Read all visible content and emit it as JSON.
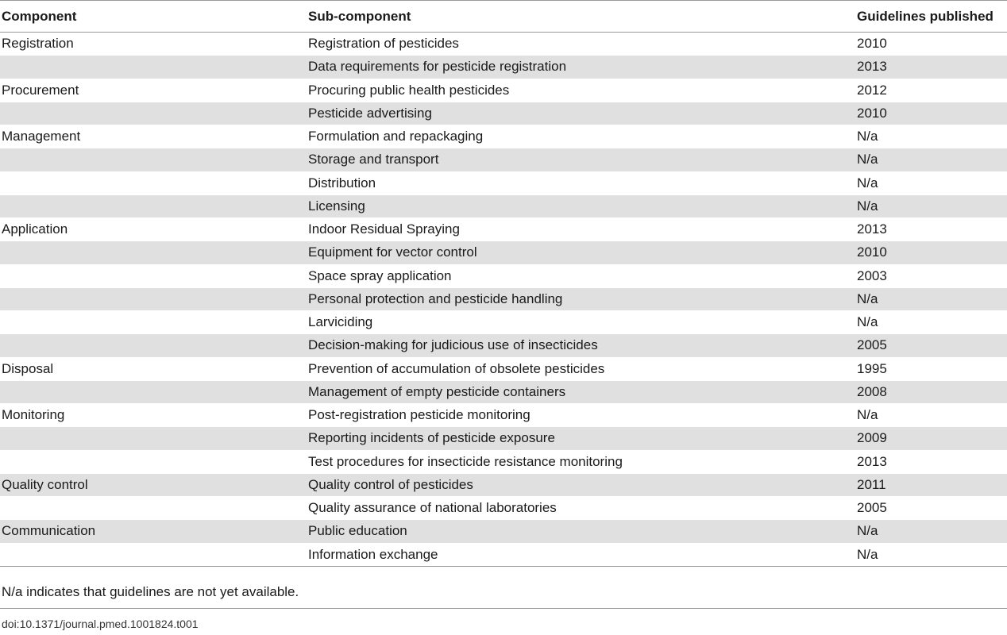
{
  "table": {
    "headers": [
      "Component",
      "Sub-component",
      "Guidelines published"
    ],
    "rows": [
      {
        "component": "Registration",
        "sub": "Registration of pesticides",
        "year": "2010"
      },
      {
        "component": "",
        "sub": "Data requirements for pesticide registration",
        "year": "2013"
      },
      {
        "component": "Procurement",
        "sub": "Procuring public health pesticides",
        "year": "2012"
      },
      {
        "component": "",
        "sub": "Pesticide advertising",
        "year": "2010"
      },
      {
        "component": "Management",
        "sub": "Formulation and repackaging",
        "year": "N/a"
      },
      {
        "component": "",
        "sub": "Storage and transport",
        "year": "N/a"
      },
      {
        "component": "",
        "sub": "Distribution",
        "year": "N/a"
      },
      {
        "component": "",
        "sub": "Licensing",
        "year": "N/a"
      },
      {
        "component": "Application",
        "sub": "Indoor Residual Spraying",
        "year": "2013"
      },
      {
        "component": "",
        "sub": "Equipment for vector control",
        "year": "2010"
      },
      {
        "component": "",
        "sub": "Space spray application",
        "year": "2003"
      },
      {
        "component": "",
        "sub": "Personal protection and pesticide handling",
        "year": "N/a"
      },
      {
        "component": "",
        "sub": "Larviciding",
        "year": "N/a"
      },
      {
        "component": "",
        "sub": "Decision-making for judicious use of insecticides",
        "year": "2005"
      },
      {
        "component": "Disposal",
        "sub": "Prevention of accumulation of obsolete pesticides",
        "year": "1995"
      },
      {
        "component": "",
        "sub": "Management of empty pesticide containers",
        "year": "2008"
      },
      {
        "component": "Monitoring",
        "sub": "Post-registration pesticide monitoring",
        "year": "N/a"
      },
      {
        "component": "",
        "sub": "Reporting incidents of pesticide exposure",
        "year": "2009"
      },
      {
        "component": "",
        "sub": "Test procedures for insecticide resistance monitoring",
        "year": "2013"
      },
      {
        "component": "Quality control",
        "sub": "Quality control of pesticides",
        "year": "2011"
      },
      {
        "component": "",
        "sub": "Quality assurance of national laboratories",
        "year": "2005"
      },
      {
        "component": "Communication",
        "sub": "Public education",
        "year": "N/a"
      },
      {
        "component": "",
        "sub": "Information exchange",
        "year": "N/a"
      }
    ]
  },
  "footnote": "N/a indicates that guidelines are not yet available.",
  "doi": "doi:10.1371/journal.pmed.1001824.t001",
  "colors": {
    "row_shade": "#e0e0e0",
    "rule": "#9a9a9a"
  }
}
